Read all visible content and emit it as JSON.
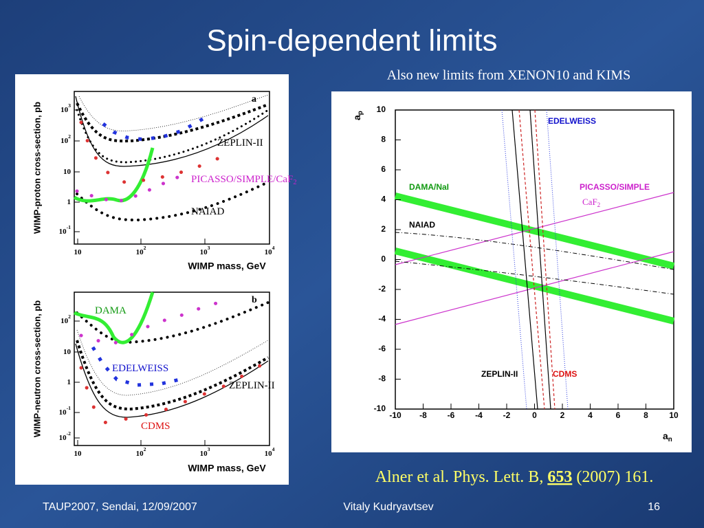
{
  "title": "Spin-dependent limits",
  "subtitle": "Also new limits from XENON10 and KIMS",
  "left_plots": [
    {
      "panel": "a",
      "y_label": "WIMP-proton cross-section, pb",
      "x_label": "WIMP mass, GeV",
      "yticks": [
        {
          "base": "10",
          "exp": "3"
        },
        {
          "base": "10",
          "exp": "2"
        },
        {
          "base": "10"
        },
        {
          "base": "1"
        },
        {
          "base": "10",
          "exp": "-1"
        }
      ],
      "xticks": [
        {
          "base": "10"
        },
        {
          "base": "10",
          "exp": "2"
        },
        {
          "base": "10",
          "exp": "3"
        },
        {
          "base": "10",
          "exp": "4"
        }
      ],
      "labels": [
        {
          "text": "ZEPLIN-II"
        },
        {
          "text": "PICASSO/SIMPLE/CaF",
          "sub": "2"
        },
        {
          "text": "NAIAD"
        }
      ]
    },
    {
      "panel": "b",
      "y_label": "WIMP-neutron cross-section, pb",
      "x_label": "WIMP mass, GeV",
      "yticks": [
        {
          "base": "10",
          "exp": "2"
        },
        {
          "base": "10"
        },
        {
          "base": "1"
        },
        {
          "base": "10",
          "exp": "-1"
        },
        {
          "base": "10",
          "exp": "-2"
        }
      ],
      "xticks": [
        {
          "base": "10"
        },
        {
          "base": "10",
          "exp": "2"
        },
        {
          "base": "10",
          "exp": "3"
        },
        {
          "base": "10",
          "exp": "4"
        }
      ],
      "labels": [
        {
          "text": "DAMA"
        },
        {
          "text": "EDELWEISS"
        },
        {
          "text": "ZEPLIN-II"
        },
        {
          "text": "CDMS"
        }
      ]
    }
  ],
  "right_plot": {
    "y_label": {
      "text": "a",
      "sub": "p"
    },
    "x_label": {
      "text": "a",
      "sub": "n"
    },
    "xticks": [
      -10,
      -8,
      -6,
      -4,
      -2,
      0,
      2,
      4,
      6,
      8,
      10
    ],
    "yticks": [
      10,
      8,
      6,
      4,
      2,
      0,
      -2,
      -4,
      -6,
      -8,
      -10
    ],
    "labels": [
      {
        "text": "EDELWEISS"
      },
      {
        "text": "DAMA/NaI"
      },
      {
        "text": "PICASSO/SIMPLE"
      },
      {
        "text": "CaF",
        "sub": "2"
      },
      {
        "text": "NAIAD"
      },
      {
        "text": "ZEPLIN-II"
      },
      {
        "text": "CDMS"
      }
    ]
  },
  "citation": {
    "text": "Alner et al. Phys. Lett. B,",
    "volume": "653",
    "rest": "(2007) 161."
  },
  "footer": {
    "left": "TAUP2007, Sendai, 12/09/2007",
    "center": "Vitaly Kudryavtsev",
    "right": "16"
  }
}
